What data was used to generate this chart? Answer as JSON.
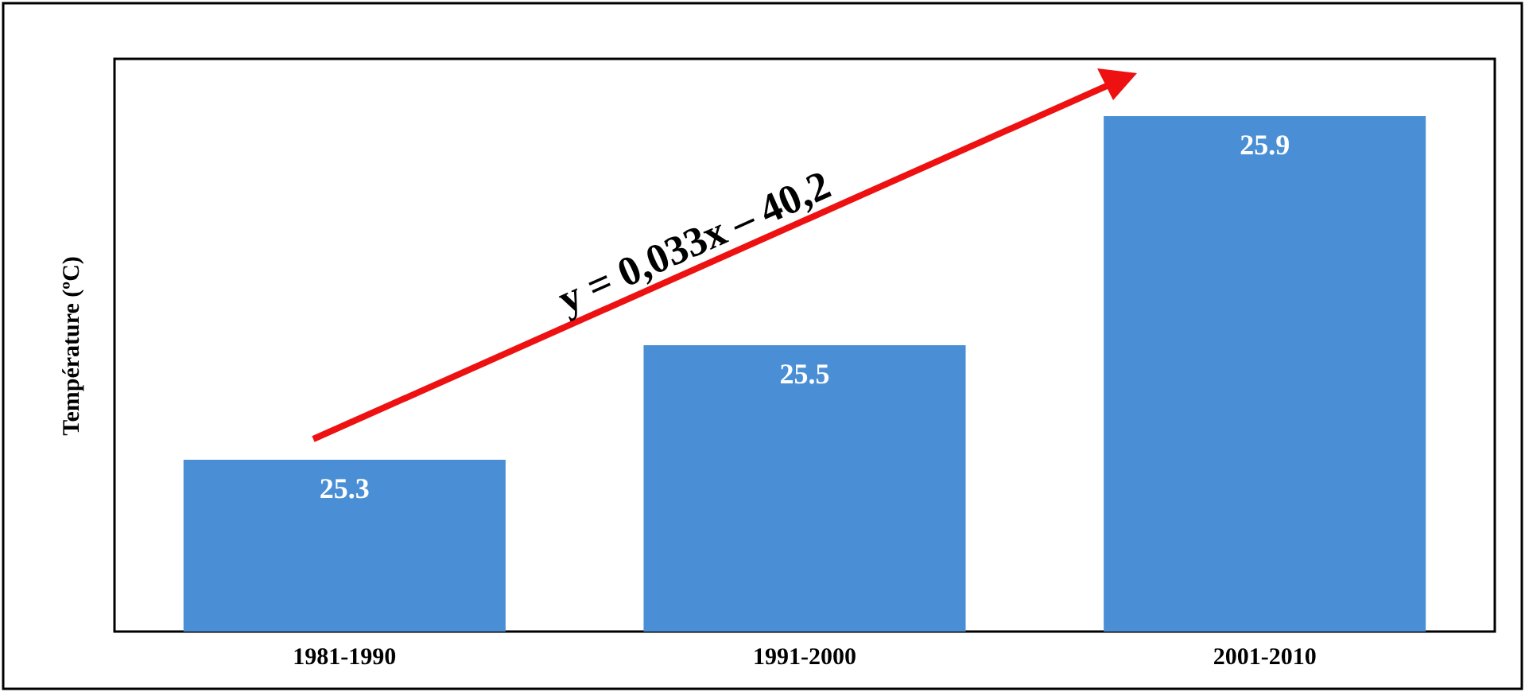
{
  "chart_data": {
    "type": "bar",
    "ylabel": "Température (ºC)",
    "categories": [
      "1981-1990",
      "1991-2000",
      "2001-2010"
    ],
    "values": [
      25.3,
      25.5,
      25.9
    ],
    "color": "#4a8fd6",
    "ylim": [
      25,
      26
    ],
    "grid": false,
    "data_labels": true,
    "annotations": [
      "y = 0,033x – 40,2"
    ]
  }
}
